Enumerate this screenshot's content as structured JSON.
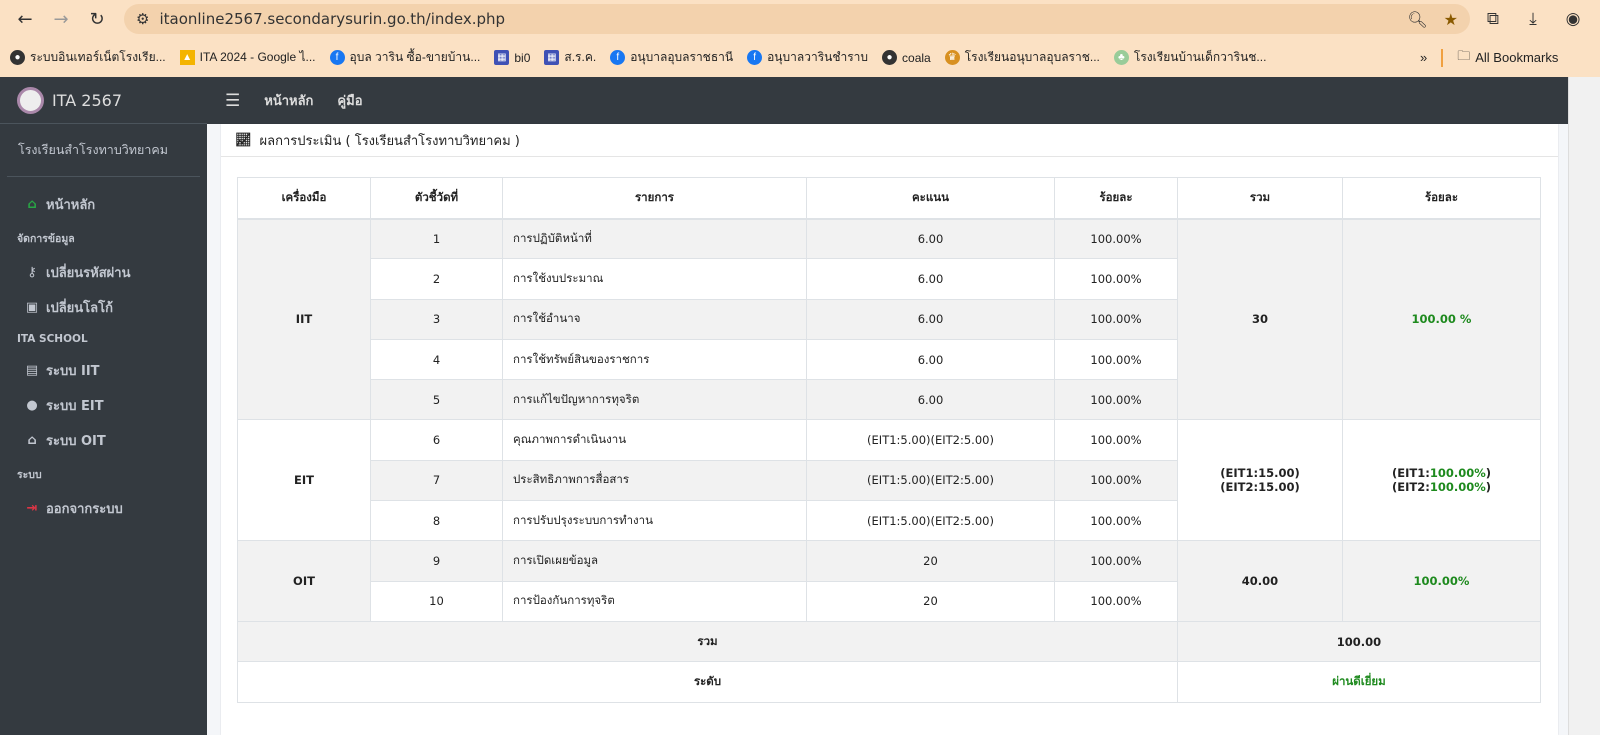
{
  "browser": {
    "url": "itaonline2567.secondarysurin.go.th/index.php",
    "bookmarks": [
      "ระบบอินเทอร์เน็ตโรงเรีย...",
      "ITA 2024 - Google ไ...",
      "อุบล วาริน ซื้อ-ขายบ้าน...",
      "bi0",
      "ส.ร.ค.",
      "อนุบาลอุบลราชธานี",
      "อนุบาลวารินชำราบ",
      "coala",
      "โรงเรียนอนุบาลอุบลราช...",
      "โรงเรียนบ้านเด็กวารินช..."
    ],
    "all_bookmarks": "All Bookmarks"
  },
  "sidebar": {
    "brand": "ITA 2567",
    "school": "โรงเรียนสำโรงทาบวิทยาคม",
    "home": "หน้าหลัก",
    "h1": "จัดการข้อมูล",
    "change_password": "เปลี่ยนรหัสผ่าน",
    "change_logo": "เปลี่ยนโลโก้",
    "h2": "ITA SCHOOL",
    "iit": "ระบบ IIT",
    "eit": "ระบบ EIT",
    "oit": "ระบบ OIT",
    "h3": "ระบบ",
    "logout": "ออกจากระบบ"
  },
  "topnav": {
    "home": "หน้าหลัก",
    "manual": "คู่มือ"
  },
  "card": {
    "title": "ผลการประเมิน ( โรงเรียนสำโรงทาบวิทยาคม )"
  },
  "table": {
    "headers": [
      "เครื่องมือ",
      "ตัวชี้วัดที่",
      "รายการ",
      "คะแนน",
      "ร้อยละ",
      "รวม",
      "ร้อยละ"
    ],
    "rows": [
      {
        "no": "1",
        "item": "การปฏิบัติหน้าที่",
        "score": "6.00",
        "pct": "100.00%"
      },
      {
        "no": "2",
        "item": "การใช้งบประมาณ",
        "score": "6.00",
        "pct": "100.00%"
      },
      {
        "no": "3",
        "item": "การใช้อำนาจ",
        "score": "6.00",
        "pct": "100.00%"
      },
      {
        "no": "4",
        "item": "การใช้ทรัพย์สินของราชการ",
        "score": "6.00",
        "pct": "100.00%"
      },
      {
        "no": "5",
        "item": "การแก้ไขปัญหาการทุจริต",
        "score": "6.00",
        "pct": "100.00%"
      },
      {
        "no": "6",
        "item": "คุณภาพการดำเนินงาน",
        "score": "(EIT1:5.00)(EIT2:5.00)",
        "pct": "100.00%"
      },
      {
        "no": "7",
        "item": "ประสิทธิภาพการสื่อสาร",
        "score": "(EIT1:5.00)(EIT2:5.00)",
        "pct": "100.00%"
      },
      {
        "no": "8",
        "item": "การปรับปรุงระบบการทำงาน",
        "score": "(EIT1:5.00)(EIT2:5.00)",
        "pct": "100.00%"
      },
      {
        "no": "9",
        "item": "การเปิดเผยข้อมูล",
        "score": "20",
        "pct": "100.00%"
      },
      {
        "no": "10",
        "item": "การป้องกันการทุจริต",
        "score": "20",
        "pct": "100.00%"
      }
    ],
    "groups": {
      "iit": {
        "name": "IIT",
        "total": "30",
        "pct": "100.00 %"
      },
      "eit": {
        "name": "EIT",
        "total1": "(EIT1:15.00)",
        "total2": "(EIT2:15.00)",
        "pct1_label": "(EIT1:",
        "pct1": "100.00%",
        "pct2_label": "(EIT2:",
        "pct2": "100.00%",
        "close": ")"
      },
      "oit": {
        "name": "OIT",
        "total": "40.00",
        "pct": "100.00%"
      }
    },
    "sum_label": "รวม",
    "sum_value": "100.00",
    "level_label": "ระดับ",
    "level_value": "ผ่านดีเยี่ยม"
  },
  "colors": {
    "accent_green": "#1e8a1e",
    "sidebar": "#343a40",
    "logout_red": "#dc3545",
    "home_green": "#28a745"
  }
}
